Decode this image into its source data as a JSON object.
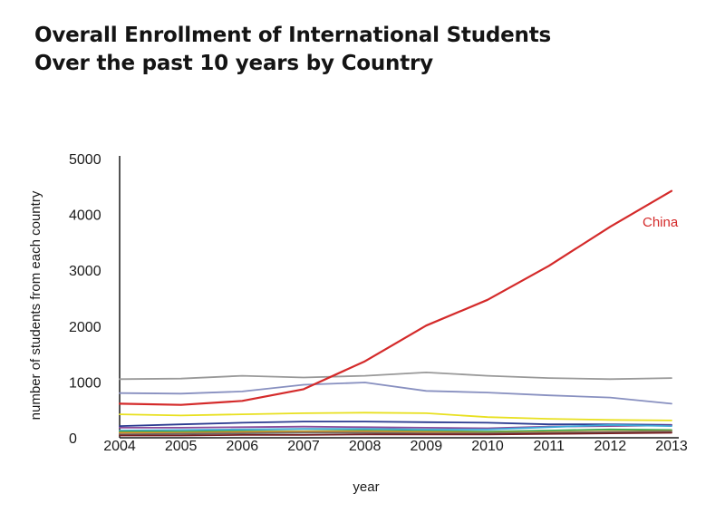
{
  "chart_data": {
    "type": "line",
    "title": "Overall Enrollment of International Students",
    "subtitle": "Over the past 10 years by Country",
    "xlabel": "year",
    "ylabel": "number of students from each country",
    "x": [
      2004,
      2005,
      2006,
      2007,
      2008,
      2009,
      2010,
      2011,
      2012,
      2013
    ],
    "ylim": [
      0,
      5000
    ],
    "yticks": [
      0,
      1000,
      2000,
      3000,
      4000,
      5000
    ],
    "grid": false,
    "series": [
      {
        "name": "",
        "color": "#999999",
        "values": [
          1050,
          1060,
          1110,
          1080,
          1110,
          1170,
          1110,
          1070,
          1050,
          1070
        ]
      },
      {
        "name": "",
        "color": "#8890c0",
        "values": [
          800,
          790,
          830,
          950,
          990,
          840,
          810,
          760,
          720,
          610
        ]
      },
      {
        "name": "",
        "color": "#e8e020",
        "values": [
          420,
          400,
          420,
          440,
          450,
          440,
          370,
          340,
          320,
          310
        ]
      },
      {
        "name": "",
        "color": "#2a3a90",
        "values": [
          210,
          240,
          270,
          290,
          290,
          280,
          270,
          240,
          240,
          230
        ]
      },
      {
        "name": "",
        "color": "#8a4a9a",
        "values": [
          180,
          180,
          190,
          200,
          190,
          180,
          170,
          200,
          210,
          220
        ]
      },
      {
        "name": "",
        "color": "#3fa8d8",
        "values": [
          130,
          140,
          150,
          160,
          160,
          150,
          150,
          190,
          230,
          210
        ]
      },
      {
        "name": "",
        "color": "#3aa84a",
        "values": [
          110,
          110,
          120,
          120,
          130,
          120,
          110,
          130,
          150,
          140
        ]
      },
      {
        "name": "",
        "color": "#e8902a",
        "values": [
          90,
          90,
          100,
          110,
          110,
          100,
          90,
          100,
          110,
          120
        ]
      },
      {
        "name": "",
        "color": "#6a6a6a",
        "values": [
          60,
          70,
          80,
          90,
          90,
          80,
          80,
          90,
          100,
          110
        ]
      },
      {
        "name": "",
        "color": "#7a2020",
        "values": [
          40,
          40,
          50,
          50,
          60,
          60,
          60,
          70,
          80,
          90
        ]
      },
      {
        "name": "China",
        "color": "#d42a2a",
        "values": [
          610,
          590,
          660,
          870,
          1370,
          2010,
          2470,
          3080,
          3780,
          4420
        ]
      }
    ]
  }
}
